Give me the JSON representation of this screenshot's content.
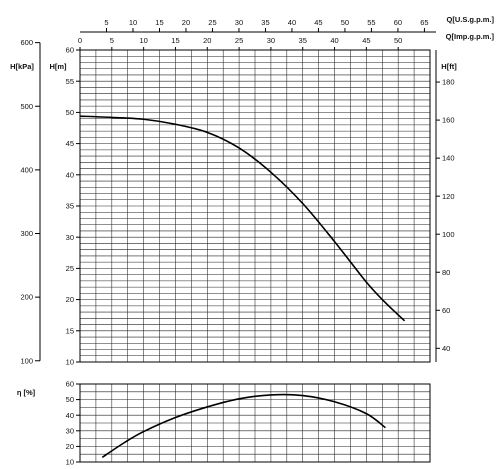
{
  "chart_data": [
    {
      "type": "line",
      "title": "",
      "x_axes": {
        "usgpm": {
          "label": "Q[U.S.g.p.m.]",
          "ticks": [
            5,
            10,
            15,
            20,
            25,
            30,
            35,
            40,
            45,
            50,
            55,
            60,
            65
          ]
        },
        "impgpm": {
          "label": "Q[Imp.g.p.m.]",
          "ticks": [
            0,
            5,
            10,
            15,
            20,
            25,
            30,
            35,
            40,
            45,
            50
          ],
          "range": [
            0,
            55
          ]
        }
      },
      "y_axes": {
        "kpa": {
          "label": "H[kPa]",
          "ticks": [
            100,
            200,
            300,
            400,
            500,
            600
          ]
        },
        "m": {
          "label": "H[m]",
          "ticks": [
            10,
            15,
            20,
            25,
            30,
            35,
            40,
            45,
            50,
            55,
            60
          ],
          "range": [
            10,
            60
          ]
        },
        "ft": {
          "label": "H[ft]",
          "ticks": [
            40,
            60,
            80,
            100,
            120,
            140,
            160,
            180
          ]
        }
      },
      "grid": true,
      "series": [
        {
          "x": [
            0,
            5,
            10,
            15,
            20,
            25,
            30,
            35,
            40,
            45,
            48,
            51
          ],
          "y": [
            49.4,
            49.2,
            48.9,
            48.1,
            46.8,
            44.3,
            40.4,
            35.4,
            29.3,
            22.8,
            19.5,
            16.6
          ]
        }
      ]
    },
    {
      "type": "line",
      "title": "",
      "y_axes": {
        "eff": {
          "label": "η [%]",
          "ticks": [
            10,
            20,
            30,
            40,
            50,
            60
          ],
          "range": [
            10,
            60
          ]
        }
      },
      "grid": true,
      "series": [
        {
          "x": [
            3.5,
            7,
            10,
            15,
            20,
            25,
            30,
            35,
            40,
            45,
            48
          ],
          "y": [
            13,
            22.5,
            29.5,
            38.5,
            45.3,
            50.5,
            53.0,
            52.6,
            48.6,
            41,
            32
          ]
        }
      ]
    }
  ]
}
